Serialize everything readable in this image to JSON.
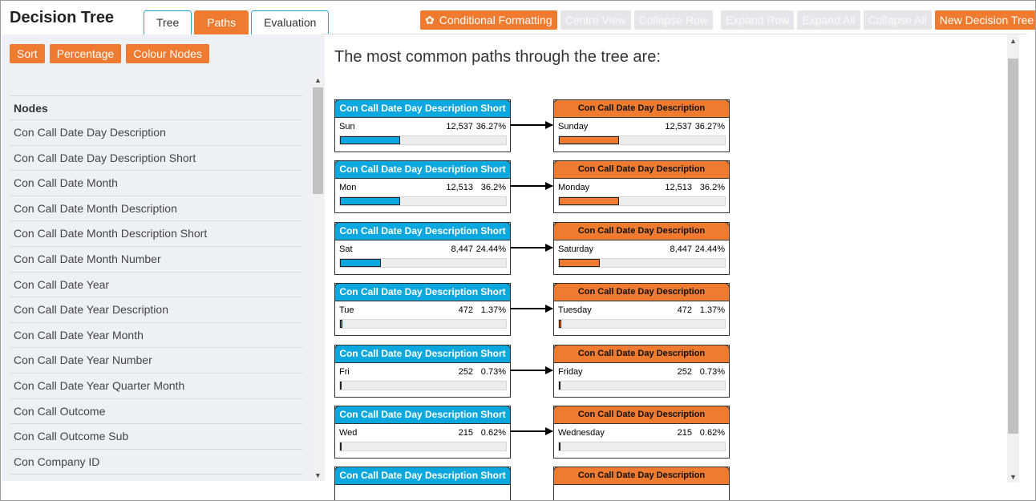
{
  "app": {
    "title": "Decision Tree"
  },
  "tabs": [
    {
      "label": "Tree",
      "active": false
    },
    {
      "label": "Paths",
      "active": true
    },
    {
      "label": "Evaluation",
      "active": false
    }
  ],
  "toolbar": {
    "conditional_formatting": "Conditional Formatting",
    "centre_view": "Centre View",
    "collapse_row": "Collapse Row",
    "expand_row": "Expand Row",
    "expand_all": "Expand All",
    "collapse_all": "Collapse All",
    "new_tree": "New Decision Tree"
  },
  "sidebar": {
    "buttons": {
      "sort": "Sort",
      "percentage": "Percentage",
      "colour_nodes": "Colour Nodes"
    },
    "nodes_header": "Nodes",
    "items": [
      "Con Call Date Day Description",
      "Con Call Date Day Description Short",
      "Con Call Date Month",
      "Con Call Date Month Description",
      "Con Call Date Month Description Short",
      "Con Call Date Month Number",
      "Con Call Date Year",
      "Con Call Date Year Description",
      "Con Call Date Year Month",
      "Con Call Date Year Number",
      "Con Call Date Year Quarter Month",
      "Con Call Outcome",
      "Con Call Outcome Sub",
      "Con Company ID"
    ]
  },
  "main": {
    "title": "The most common paths through the tree are:",
    "paths": [
      {
        "left": {
          "title": "Con Call Date Day Description Short",
          "label": "Sun",
          "count": "12,537",
          "pct": "36.27%",
          "fraction": 0.3627
        },
        "right": {
          "title": "Con Call Date Day Description",
          "label": "Sunday",
          "count": "12,537",
          "pct": "36.27%",
          "fraction": 0.3627
        }
      },
      {
        "left": {
          "title": "Con Call Date Day Description Short",
          "label": "Mon",
          "count": "12,513",
          "pct": "36.2%",
          "fraction": 0.362
        },
        "right": {
          "title": "Con Call Date Day Description",
          "label": "Monday",
          "count": "12,513",
          "pct": "36.2%",
          "fraction": 0.362
        }
      },
      {
        "left": {
          "title": "Con Call Date Day Description Short",
          "label": "Sat",
          "count": "8,447",
          "pct": "24.44%",
          "fraction": 0.2444
        },
        "right": {
          "title": "Con Call Date Day Description",
          "label": "Saturday",
          "count": "8,447",
          "pct": "24.44%",
          "fraction": 0.2444
        }
      },
      {
        "left": {
          "title": "Con Call Date Day Description Short",
          "label": "Tue",
          "count": "472",
          "pct": "1.37%",
          "fraction": 0.0137
        },
        "right": {
          "title": "Con Call Date Day Description",
          "label": "Tuesday",
          "count": "472",
          "pct": "1.37%",
          "fraction": 0.0137
        }
      },
      {
        "left": {
          "title": "Con Call Date Day Description Short",
          "label": "Fri",
          "count": "252",
          "pct": "0.73%",
          "fraction": 0.0073
        },
        "right": {
          "title": "Con Call Date Day Description",
          "label": "Friday",
          "count": "252",
          "pct": "0.73%",
          "fraction": 0.0073
        }
      },
      {
        "left": {
          "title": "Con Call Date Day Description Short",
          "label": "Wed",
          "count": "215",
          "pct": "0.62%",
          "fraction": 0.0062
        },
        "right": {
          "title": "Con Call Date Day Description",
          "label": "Wednesday",
          "count": "215",
          "pct": "0.62%",
          "fraction": 0.0062
        }
      },
      {
        "left": {
          "title": "Con Call Date Day Description Short"
        },
        "right": {
          "title": "Con Call Date Day Description"
        }
      }
    ]
  },
  "colors": {
    "accent": "#ef7b30",
    "blue": "#0aa8df",
    "disabled": "#e4e6e9"
  },
  "icons": {
    "conditional_formatting": "gear-icon"
  }
}
